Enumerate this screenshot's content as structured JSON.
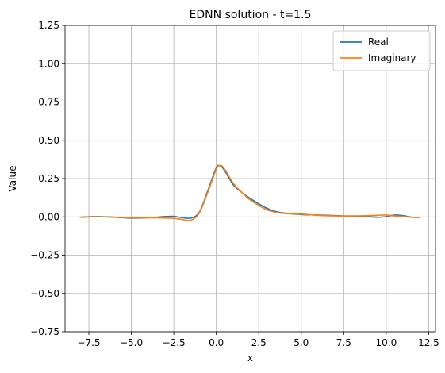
{
  "chart_data": {
    "type": "line",
    "title": "EDNN solution - t=1.5",
    "xlabel": "x",
    "ylabel": "Value",
    "xlim": [
      -8.9,
      12.9
    ],
    "ylim": [
      -0.75,
      1.25
    ],
    "xticks": [
      -7.5,
      -5.0,
      -2.5,
      0.0,
      2.5,
      5.0,
      7.5,
      10.0,
      12.5
    ],
    "xtick_labels": [
      "−7.5",
      "−5.0",
      "−2.5",
      "0.0",
      "2.5",
      "5.0",
      "7.5",
      "10.0",
      "12.5"
    ],
    "yticks": [
      -0.75,
      -0.5,
      -0.25,
      0.0,
      0.25,
      0.5,
      0.75,
      1.0,
      1.25
    ],
    "ytick_labels": [
      "−0.75",
      "−0.50",
      "−0.25",
      "0.00",
      "0.25",
      "0.50",
      "0.75",
      "1.00",
      "1.25"
    ],
    "grid": true,
    "legend_position": "top-right",
    "series": [
      {
        "name": "Real",
        "color": "#1f77b4",
        "x": [
          -8.0,
          -7.0,
          -6.0,
          -5.0,
          -4.0,
          -3.0,
          -2.5,
          -2.0,
          -1.5,
          -1.0,
          -0.5,
          0.0,
          0.25,
          0.5,
          1.0,
          1.5,
          2.0,
          2.5,
          3.0,
          3.5,
          4.0,
          5.0,
          6.0,
          7.0,
          8.0,
          9.0,
          9.5,
          10.0,
          10.5,
          11.0,
          11.5,
          12.0
        ],
        "y": [
          -0.002,
          0.002,
          -0.002,
          -0.008,
          -0.006,
          0.002,
          0.003,
          -0.005,
          -0.008,
          0.03,
          0.17,
          0.32,
          0.33,
          0.3,
          0.21,
          0.16,
          0.12,
          0.085,
          0.055,
          0.035,
          0.025,
          0.015,
          0.012,
          0.008,
          0.004,
          0.0,
          -0.003,
          0.002,
          0.012,
          0.008,
          -0.002,
          -0.004
        ]
      },
      {
        "name": "Imaginary",
        "color": "#ff7f0e",
        "x": [
          -8.0,
          -7.0,
          -6.0,
          -5.0,
          -4.0,
          -3.0,
          -2.5,
          -2.0,
          -1.5,
          -1.0,
          -0.5,
          0.0,
          0.25,
          0.5,
          1.0,
          1.5,
          2.0,
          2.5,
          3.0,
          3.5,
          4.0,
          5.0,
          6.0,
          7.0,
          8.0,
          9.0,
          9.5,
          10.0,
          10.5,
          11.0,
          11.5,
          12.0
        ],
        "y": [
          -0.003,
          0.001,
          -0.003,
          -0.006,
          -0.006,
          -0.008,
          -0.01,
          -0.017,
          -0.022,
          0.025,
          0.16,
          0.31,
          0.335,
          0.31,
          0.22,
          0.16,
          0.11,
          0.075,
          0.045,
          0.03,
          0.022,
          0.018,
          0.01,
          0.006,
          0.006,
          0.008,
          0.01,
          0.012,
          0.006,
          0.003,
          -0.003,
          -0.004
        ]
      }
    ]
  }
}
